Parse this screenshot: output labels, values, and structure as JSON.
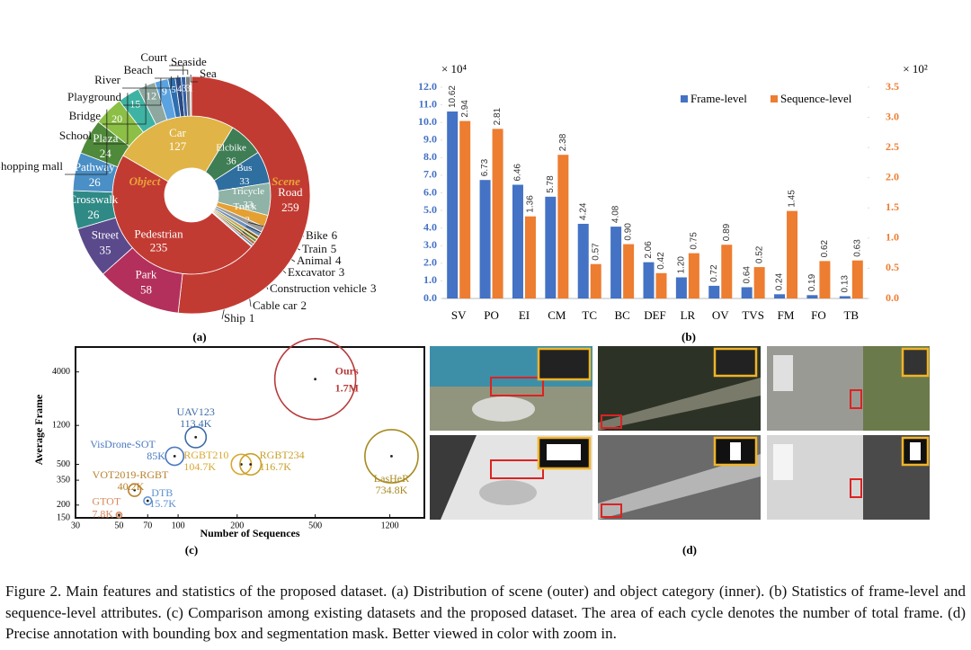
{
  "figure": {
    "panel_labels": [
      "(a)",
      "(b)",
      "(c)",
      "(d)"
    ],
    "caption": "Figure 2. Main features and statistics of the proposed dataset. (a) Distribution of scene (outer) and object category (inner). (b) Statistics of frame-level and sequence-level attributes. (c) Comparison among existing datasets and the proposed dataset. The area of each cycle denotes the number of total frame. (d) Precise annotation with bounding box and segmentation mask. Better viewed in color with zoom in."
  },
  "chart_data": [
    {
      "type": "sunburst",
      "series": [
        {
          "name": "Object",
          "color": "#e8a33a",
          "categories": [
            "Car",
            "Elcbike",
            "Bus",
            "Tricycle",
            "Truck",
            "Bike",
            "Train",
            "Animal",
            "Excavator",
            "Construction vehicle",
            "Cable car",
            "Ship",
            "Pedestrian"
          ],
          "values": [
            127,
            36,
            33,
            33,
            12,
            6,
            5,
            4,
            3,
            3,
            2,
            1,
            235
          ],
          "colors": [
            "#e0b446",
            "#3f7d55",
            "#2f6f9f",
            "#8fb3a6",
            "#e5a032",
            "#9a9a9a",
            "#6b8fbf",
            "#c9a64a",
            "#6f8f3f",
            "#b07040",
            "#4a7a9a",
            "#9a5a8a",
            "#c23b32"
          ]
        },
        {
          "name": "Scene",
          "color": "#e8a33a",
          "categories": [
            "Road",
            "Park",
            "Street",
            "Crosswalk",
            "Pathway",
            "Plaza",
            "Shopping mall",
            "School",
            "Bridge",
            "Playground",
            "River",
            "Beach",
            "Court",
            "Seaside",
            "Sea"
          ],
          "values": [
            259,
            58,
            35,
            26,
            26,
            24,
            20,
            15,
            12,
            9,
            5,
            4,
            3,
            3,
            1
          ],
          "colors": [
            "#c23b32",
            "#b3305c",
            "#5a4a8c",
            "#2f8a86",
            "#4a8fc6",
            "#4f8a3a",
            "#8cbf45",
            "#3fb3a3",
            "#8fa89f",
            "#5aa2e0",
            "#2f6fb0",
            "#2a4a82",
            "#2f5fa5",
            "#7f7f7f",
            "#b5b5b5"
          ]
        }
      ]
    },
    {
      "type": "bar",
      "categories": [
        "SV",
        "PO",
        "EI",
        "CM",
        "TC",
        "BC",
        "DEF",
        "LR",
        "OV",
        "TVS",
        "FM",
        "FO",
        "TB"
      ],
      "y_unit": "× 10⁴",
      "y2_unit": "× 10²",
      "series": [
        {
          "name": "Frame-level",
          "color": "#4472c4",
          "values": [
            10.62,
            6.73,
            6.46,
            5.78,
            4.24,
            4.08,
            2.06,
            1.2,
            0.72,
            0.64,
            0.24,
            0.19,
            0.13
          ],
          "value_labels": [
            "10.62",
            "6.73",
            "6.46",
            "5.78",
            "4.24",
            "4.08",
            "2.06",
            "1.20",
            "0.72",
            "0.64",
            "0.24",
            "0.19",
            "0.13"
          ]
        },
        {
          "name": "Sequence-level",
          "color": "#ed7d31",
          "axis": "y2",
          "values": [
            2.94,
            2.81,
            1.36,
            2.38,
            0.57,
            0.9,
            0.42,
            0.75,
            0.89,
            0.52,
            1.45,
            0.62,
            0.63
          ],
          "value_labels": [
            "2.94",
            "2.81",
            "1.36",
            "2.38",
            "0.57",
            "0.90",
            "0.42",
            "0.75",
            "0.89",
            "0.52",
            "1.45",
            "0.62",
            "0.63"
          ]
        }
      ],
      "ylim": [
        0,
        12
      ],
      "yticks": [
        {
          "value": 0,
          "label": "0.0"
        },
        {
          "value": 1,
          "label": "1.0"
        },
        {
          "value": 2,
          "label": "2.0"
        },
        {
          "value": 3,
          "label": "3.0"
        },
        {
          "value": 4,
          "label": "4.0"
        },
        {
          "value": 5,
          "label": "5.0"
        },
        {
          "value": 6,
          "label": "6.0"
        },
        {
          "value": 7,
          "label": "7.0"
        },
        {
          "value": 8,
          "label": "8.0"
        },
        {
          "value": 9,
          "label": "9.0"
        },
        {
          "value": 10,
          "label": "10.0"
        },
        {
          "value": 11,
          "label": "11.0"
        },
        {
          "value": 12,
          "label": "12.0"
        }
      ],
      "y2lim": [
        0,
        3.5
      ],
      "y2ticks": [
        {
          "value": 0,
          "label": "0.0"
        },
        0.5,
        {
          "value": 1,
          "label": "1.0"
        },
        1.5,
        {
          "value": 2,
          "label": "2.0"
        },
        2.5,
        {
          "value": 3,
          "label": "3.0"
        },
        3.5
      ],
      "legend": "upper right"
    },
    {
      "type": "bubble",
      "xlabel": "Number of Sequences",
      "ylabel": "Average Frame",
      "log_x": true,
      "log_y": true,
      "xlim": [
        30,
        1800
      ],
      "ylim": [
        150,
        7000
      ],
      "xticks": [
        30,
        50,
        70,
        100,
        200,
        500,
        1200
      ],
      "yticks": [
        150,
        200,
        350,
        500,
        1200,
        4000
      ],
      "series": [
        {
          "name": "GTOT",
          "color": "#d9875a",
          "x": [
            50
          ],
          "values": [
            160
          ],
          "sizes": [
            7800
          ],
          "size_labels": [
            "7.8K"
          ]
        },
        {
          "name": "VOT2019-RGBT",
          "color": "#b9822e",
          "x": [
            60
          ],
          "values": [
            280
          ],
          "sizes": [
            40200
          ],
          "size_labels": [
            "40.2K"
          ]
        },
        {
          "name": "DTB",
          "color": "#5b8fd0",
          "x": [
            70
          ],
          "values": [
            220
          ],
          "sizes": [
            15700
          ],
          "size_labels": [
            "15.7K"
          ]
        },
        {
          "name": "VisDrone-SOT",
          "color": "#4a78c0",
          "x": [
            96
          ],
          "values": [
            600
          ],
          "sizes": [
            85000
          ],
          "size_labels": [
            "85K"
          ]
        },
        {
          "name": "UAV123",
          "color": "#3d6ba8",
          "x": [
            123
          ],
          "values": [
            920
          ],
          "sizes": [
            113400
          ],
          "size_labels": [
            "113.4K"
          ]
        },
        {
          "name": "RGBT210",
          "color": "#d9a832",
          "x": [
            210
          ],
          "values": [
            500
          ],
          "sizes": [
            104700
          ],
          "size_labels": [
            "104.7K"
          ]
        },
        {
          "name": "RGBT234",
          "color": "#c9a02a",
          "x": [
            234
          ],
          "values": [
            500
          ],
          "sizes": [
            116700
          ],
          "size_labels": [
            "116.7K"
          ]
        },
        {
          "name": "Ours",
          "color": "#b83a3a",
          "x": [
            500
          ],
          "values": [
            3400
          ],
          "sizes": [
            1700000
          ],
          "size_labels": [
            "1.7M"
          ]
        },
        {
          "name": "LasHeR",
          "color": "#a88a20",
          "x": [
            1224
          ],
          "values": [
            600
          ],
          "sizes": [
            734800
          ],
          "size_labels": [
            "734.8K"
          ]
        }
      ]
    }
  ]
}
